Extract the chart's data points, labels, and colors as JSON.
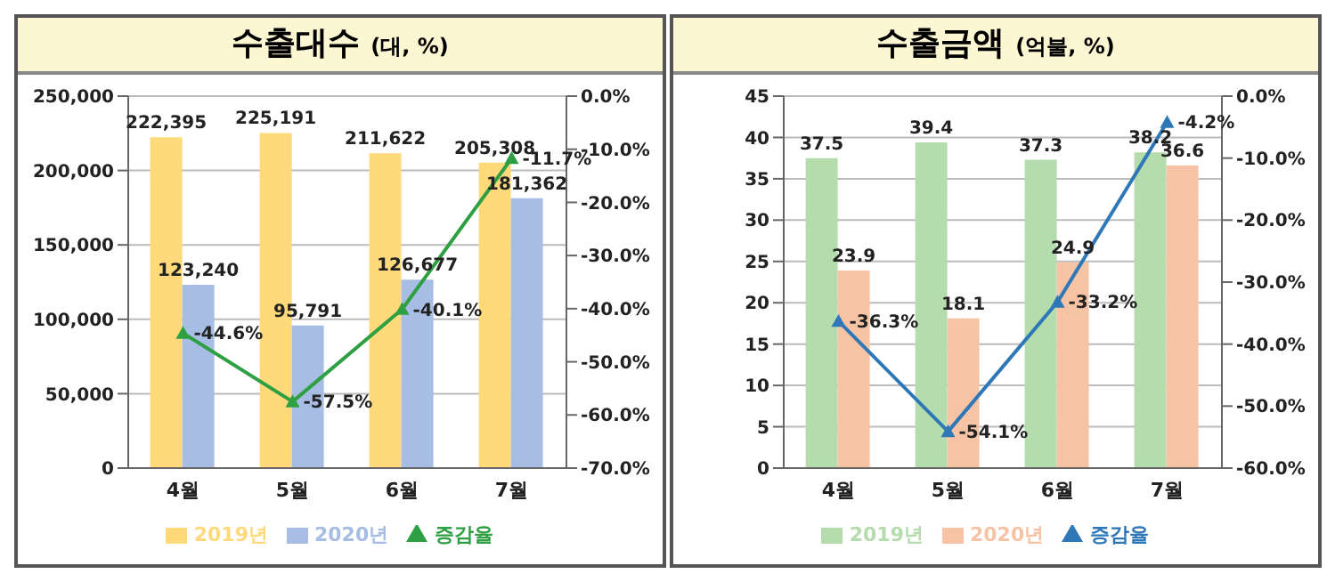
{
  "chart_data": [
    {
      "type": "bar",
      "title": "수출대수",
      "subtitle": "(대, %)",
      "categories": [
        "4월",
        "5월",
        "6월",
        "7월"
      ],
      "series": [
        {
          "name": "2019년",
          "color": "#ffd97a",
          "values": [
            222395,
            225191,
            211622,
            205308
          ],
          "value_labels": [
            "222,395",
            "225,191",
            "211,622",
            "205,308"
          ]
        },
        {
          "name": "2020년",
          "color": "#a7bde3",
          "values": [
            123240,
            95791,
            126677,
            181362
          ],
          "value_labels": [
            "123,240",
            "95,791",
            "126,677",
            "181,362"
          ]
        },
        {
          "name": "증감율",
          "type": "line",
          "axis": "y2",
          "color": "#2ea043",
          "values": [
            -44.6,
            -57.5,
            -40.1,
            -11.7
          ],
          "value_labels": [
            "-44.6%",
            "-57.5%",
            "-40.1%",
            "-11.7%"
          ]
        }
      ],
      "ylim": [
        0,
        250000
      ],
      "yticks": [
        {
          "value": 0,
          "label": "0"
        },
        {
          "value": 50000,
          "label": "50,000"
        },
        {
          "value": 100000,
          "label": "100,000"
        },
        {
          "value": 150000,
          "label": "150,000"
        },
        {
          "value": 200000,
          "label": "200,000"
        },
        {
          "value": 250000,
          "label": "250,000"
        }
      ],
      "y2lim": [
        -70,
        0
      ],
      "y2ticks": [
        {
          "value": 0,
          "label": "0.0%"
        },
        {
          "value": -10,
          "label": "-10.0%"
        },
        {
          "value": -20,
          "label": "-20.0%"
        },
        {
          "value": -30,
          "label": "-30.0%"
        },
        {
          "value": -40,
          "label": "-40.0%"
        },
        {
          "value": -50,
          "label": "-50.0%"
        },
        {
          "value": -60,
          "label": "-60.0%"
        },
        {
          "value": -70,
          "label": "-70.0%"
        }
      ],
      "grid": "y",
      "legend": "bottom",
      "marker": "triangle"
    },
    {
      "type": "bar",
      "title": "수출금액",
      "subtitle": "(억불, %)",
      "categories": [
        "4월",
        "5월",
        "6월",
        "7월"
      ],
      "series": [
        {
          "name": "2019년",
          "color": "#b5dcad",
          "values": [
            37.5,
            39.4,
            37.3,
            38.2
          ],
          "value_labels": [
            "37.5",
            "39.4",
            "37.3",
            "38.2"
          ]
        },
        {
          "name": "2020년",
          "color": "#f6c3a5",
          "values": [
            23.9,
            18.1,
            24.9,
            36.6
          ],
          "value_labels": [
            "23.9",
            "18.1",
            "24.9",
            "36.6"
          ]
        },
        {
          "name": "증감율",
          "type": "line",
          "axis": "y2",
          "color": "#2f78b8",
          "values": [
            -36.3,
            -54.1,
            -33.2,
            -4.2
          ],
          "value_labels": [
            "-36.3%",
            "-54.1%",
            "-33.2%",
            "-4.2%"
          ]
        }
      ],
      "ylim": [
        0,
        45
      ],
      "yticks": [
        0,
        5,
        10,
        15,
        20,
        25,
        30,
        35,
        40,
        45
      ],
      "y2lim": [
        -60,
        0
      ],
      "y2ticks": [
        {
          "value": 0,
          "label": "0.0%"
        },
        {
          "value": -10,
          "label": "-10.0%"
        },
        {
          "value": -20,
          "label": "-20.0%"
        },
        {
          "value": -30,
          "label": "-30.0%"
        },
        {
          "value": -40,
          "label": "-40.0%"
        },
        {
          "value": -50,
          "label": "-50.0%"
        },
        {
          "value": -60,
          "label": "-60.0%"
        }
      ],
      "grid": "y",
      "legend": "bottom",
      "marker": "triangle"
    }
  ]
}
